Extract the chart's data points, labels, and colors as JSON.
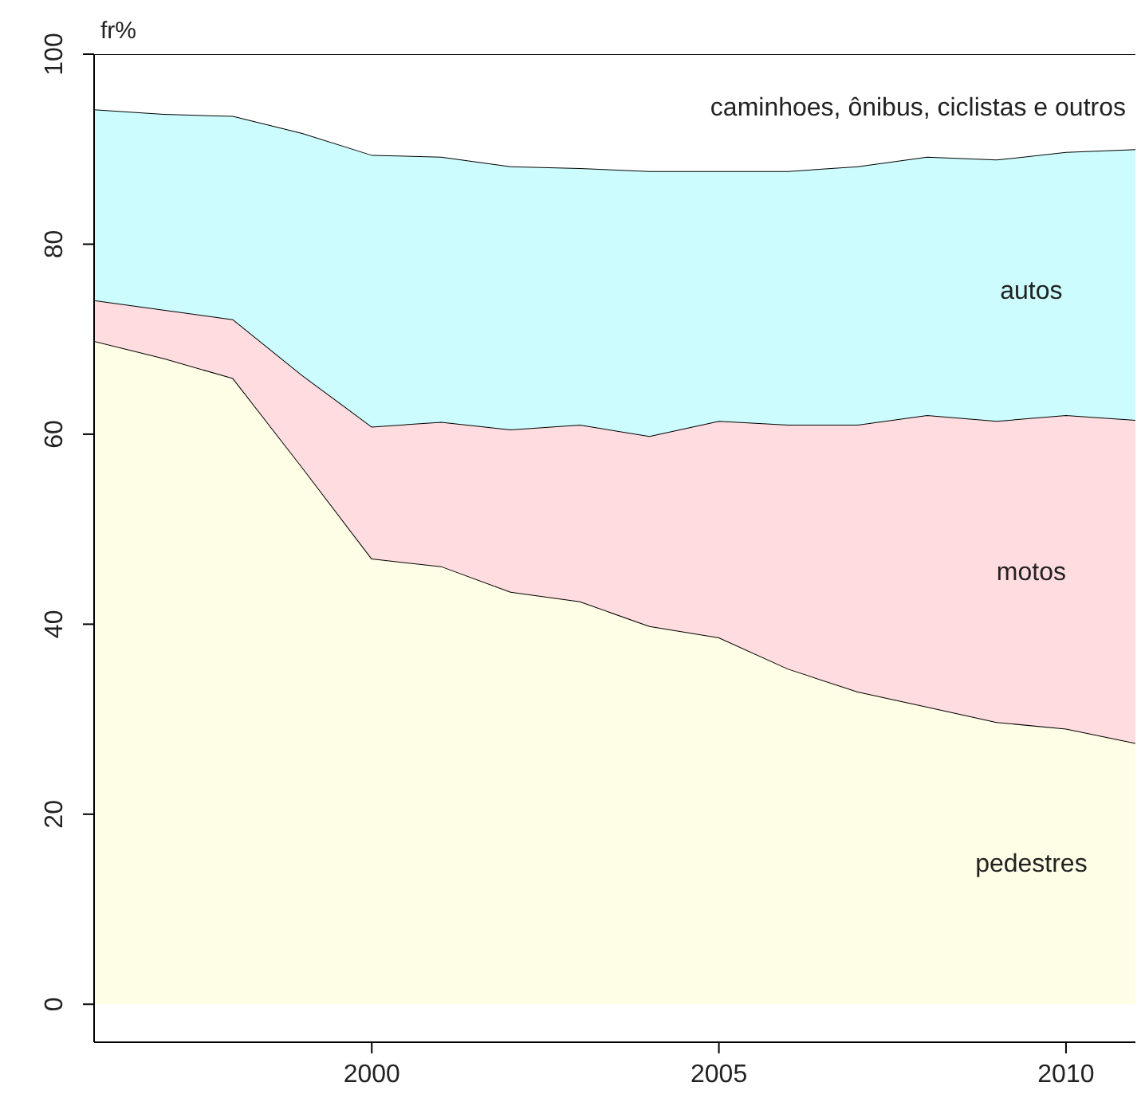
{
  "chart_data": {
    "type": "area",
    "stacked": true,
    "ylabel": "fr%",
    "x": [
      1996,
      1997,
      1998,
      1999,
      2000,
      2001,
      2002,
      2003,
      2004,
      2005,
      2006,
      2007,
      2008,
      2009,
      2010,
      2011
    ],
    "xlim": [
      1996,
      2011
    ],
    "ylim": [
      -4,
      100
    ],
    "xticks": [
      2000,
      2005,
      2010
    ],
    "yticks": [
      0,
      20,
      40,
      60,
      80,
      100
    ],
    "grid": false,
    "legend": false,
    "series": [
      {
        "name": "pedestres",
        "color": "#fefee6",
        "values": [
          69.8,
          68,
          65.9,
          56.5,
          46.9,
          46.1,
          43.4,
          42.4,
          39.8,
          38.6,
          35.3,
          32.9,
          31.3,
          29.7,
          29.0,
          27.5
        ]
      },
      {
        "name": "motos",
        "color": "#ffdce0",
        "values": [
          4.3,
          5.1,
          6.2,
          9.7,
          13.9,
          15.2,
          17.1,
          18.6,
          20,
          22.8,
          25.7,
          28.1,
          30.7,
          31.7,
          33,
          34
        ]
      },
      {
        "name": "autos",
        "color": "#ccfcfd",
        "values": [
          20.1,
          20.6,
          21.4,
          25.5,
          28.6,
          27.9,
          27.7,
          27,
          27.9,
          26.3,
          26.7,
          27.2,
          27.2,
          27.5,
          27.7,
          28.5
        ]
      },
      {
        "name": "caminhoes, ônibus, ciclistas e outros",
        "color": "#ffffff",
        "values": [
          5.8,
          6.3,
          6.5,
          8.3,
          10.6,
          10.8,
          11.8,
          12,
          12.3,
          12.3,
          12.3,
          11.8,
          10.8,
          11.1,
          10.3,
          10
        ]
      }
    ]
  }
}
